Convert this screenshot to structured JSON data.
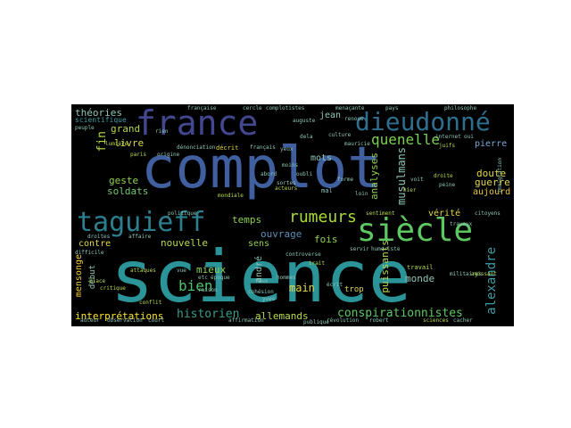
{
  "words": {
    "complot": "complot",
    "science": "science",
    "france": "france",
    "dieudonne": "dieudonné",
    "taguieff": "taguieff",
    "siecle": "siècle",
    "quenelle": "quenelle",
    "rumeurs": "rumeurs",
    "historien": "historien",
    "conspirationnistes": "conspirationnistes",
    "interpretations": "interprétations",
    "alexandre": "alexandre",
    "bien": "bien",
    "theories": "théories",
    "scientifique": "scientifique",
    "grand": "grand",
    "livre": "livre",
    "geste": "geste",
    "soldats": "soldats",
    "fin": "fin",
    "jean": "jean",
    "pierre": "pierre",
    "doute": "doute",
    "guerre": "guerre",
    "aujourd": "aujourd",
    "mots": "mots",
    "temps": "temps",
    "nouvelle": "nouvelle",
    "contre": "contre",
    "mensonge": "mensonge",
    "mieux": "mieux",
    "ouvrage": "ouvrage",
    "fois": "fois",
    "sens": "sens",
    "main": "main",
    "monde": "monde",
    "allemands": "allemands",
    "verite": "vérité",
    "musulmans": "musulmans",
    "analyses": "analyses",
    "puissants": "puissants",
    "andre": "andré",
    "debut": "début",
    "trop": "trop",
    "complotistes": "complotistes",
    "francaise": "française",
    "cercle": "cercle",
    "decrit": "décrit",
    "francais": "français",
    "mondiale": "mondiale",
    "politique": "politique",
    "lumiere": "lumière",
    "paris": "paris",
    "travail": "travail",
    "militaires": "militaires",
    "juifs": "juifs",
    "hier": "hier",
    "droite": "droite",
    "peine": "peine",
    "voit": "voit",
    "loin": "loin",
    "mal": "mal",
    "yeux": "yeux",
    "menacante": "menaçante",
    "philosophe": "philosophe",
    "pays": "pays",
    "internet": "internet",
    "culture": "culture",
    "sentiment": "sentiment",
    "auguste": "auguste",
    "acteurs": "acteurs",
    "peuple": "peuple",
    "origine": "origine",
    "attaques": "attaques",
    "critique": "critique",
    "conflit": "conflit",
    "place": "place",
    "difficile": "difficile",
    "droites": "droites",
    "affaire": "affaire",
    "controverse": "controverse",
    "ecrit": "écrit",
    "servir": "servir",
    "humoriste": "humoriste",
    "sciences": "sciences",
    "cacher": "cacher",
    "robert": "robert",
    "observation": "observation",
    "court": "court",
    "yves": "yves",
    "agissant": "agissant",
    "citoyens": "citoyens",
    "travaux": "travaux",
    "trait": "trait",
    "vue": "vue",
    "raison": "raison",
    "cohesion": "cohésion",
    "etc": "etc",
    "hommes": "hommes",
    "faux": "faux",
    "rien": "rien",
    "denonciation": "dénonciation",
    "affirmation": "affirmation",
    "revolution": "révolution",
    "publique": "publique",
    "epoque": "époque",
    "mauricie": "mauricie",
    "renoue": "renoue",
    "auteur": "auteur",
    "oui": "oui",
    "dela": "dela",
    "forme": "forme",
    "oubli": "oubli",
    "moins": "moins",
    "sortes": "sortes",
    "abord": "abord",
    "immigration": "immigration"
  }
}
